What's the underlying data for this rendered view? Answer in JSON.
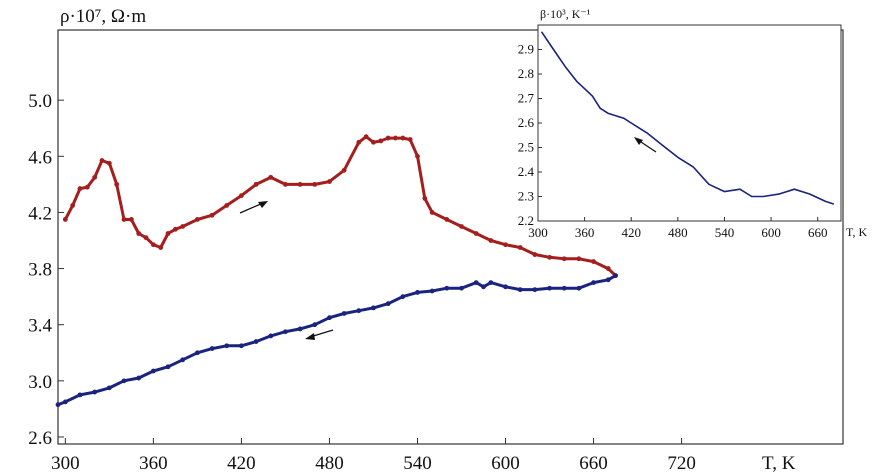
{
  "chart_data": [
    {
      "type": "line",
      "ylabel": "ρ·10⁷, Ω·m",
      "xlabel": "T, K",
      "xlim": [
        295,
        830
      ],
      "ylim": [
        2.55,
        5.5
      ],
      "xticks": [
        "300",
        "360",
        "420",
        "480",
        "540",
        "600",
        "660",
        "720"
      ],
      "yticks": [
        "2.6",
        "3.0",
        "3.4",
        "3.8",
        "4.2",
        "4.6",
        "5.0"
      ],
      "grid": false,
      "series": [
        {
          "color": "#a51e1e",
          "direction": "heating",
          "x": [
            300,
            305,
            310,
            315,
            320,
            325,
            330,
            335,
            340,
            345,
            350,
            355,
            360,
            365,
            370,
            375,
            380,
            390,
            400,
            410,
            420,
            430,
            440,
            450,
            460,
            470,
            480,
            490,
            500,
            505,
            510,
            515,
            520,
            525,
            530,
            535,
            540,
            545,
            550,
            560,
            570,
            580,
            590,
            600,
            610,
            620,
            630,
            640,
            650,
            660,
            670,
            675
          ],
          "y": [
            4.15,
            4.25,
            4.37,
            4.38,
            4.45,
            4.57,
            4.55,
            4.4,
            4.15,
            4.15,
            4.05,
            4.02,
            3.97,
            3.95,
            4.05,
            4.08,
            4.1,
            4.15,
            4.18,
            4.25,
            4.32,
            4.4,
            4.45,
            4.4,
            4.4,
            4.4,
            4.42,
            4.5,
            4.7,
            4.74,
            4.7,
            4.71,
            4.73,
            4.73,
            4.73,
            4.72,
            4.6,
            4.3,
            4.2,
            4.15,
            4.1,
            4.05,
            4.0,
            3.97,
            3.95,
            3.9,
            3.88,
            3.87,
            3.87,
            3.85,
            3.8,
            3.75
          ]
        },
        {
          "color": "#1a237e",
          "direction": "cooling",
          "x": [
            675,
            670,
            660,
            650,
            640,
            630,
            620,
            610,
            600,
            590,
            585,
            580,
            570,
            560,
            550,
            540,
            530,
            520,
            510,
            500,
            490,
            480,
            470,
            460,
            450,
            440,
            430,
            420,
            410,
            400,
            390,
            380,
            370,
            360,
            350,
            340,
            330,
            320,
            310,
            300,
            295
          ],
          "y": [
            3.75,
            3.72,
            3.7,
            3.66,
            3.66,
            3.66,
            3.65,
            3.65,
            3.67,
            3.7,
            3.67,
            3.7,
            3.66,
            3.66,
            3.64,
            3.63,
            3.6,
            3.55,
            3.52,
            3.5,
            3.48,
            3.45,
            3.4,
            3.37,
            3.35,
            3.32,
            3.28,
            3.25,
            3.25,
            3.23,
            3.2,
            3.15,
            3.1,
            3.07,
            3.02,
            3.0,
            2.95,
            2.92,
            2.9,
            2.85,
            2.83
          ]
        }
      ]
    },
    {
      "type": "line",
      "ylabel": "β·10³, K⁻¹",
      "xlabel": "T, K",
      "xlim": [
        300,
        690
      ],
      "ylim": [
        2.2,
        3.0
      ],
      "xticks": [
        "300",
        "360",
        "420",
        "480",
        "540",
        "600",
        "660"
      ],
      "yticks": [
        "2.2",
        "2.3",
        "2.4",
        "2.5",
        "2.6",
        "2.7",
        "2.8",
        "2.9"
      ],
      "grid": false,
      "series": [
        {
          "color": "#1a237e",
          "x": [
            305,
            320,
            335,
            350,
            360,
            370,
            380,
            390,
            400,
            410,
            420,
            430,
            440,
            460,
            480,
            500,
            520,
            540,
            560,
            575,
            590,
            610,
            630,
            650,
            670,
            680
          ],
          "y": [
            2.97,
            2.9,
            2.83,
            2.77,
            2.74,
            2.71,
            2.66,
            2.64,
            2.63,
            2.62,
            2.6,
            2.58,
            2.56,
            2.51,
            2.46,
            2.42,
            2.35,
            2.32,
            2.33,
            2.3,
            2.3,
            2.31,
            2.33,
            2.31,
            2.28,
            2.27
          ]
        }
      ]
    }
  ]
}
